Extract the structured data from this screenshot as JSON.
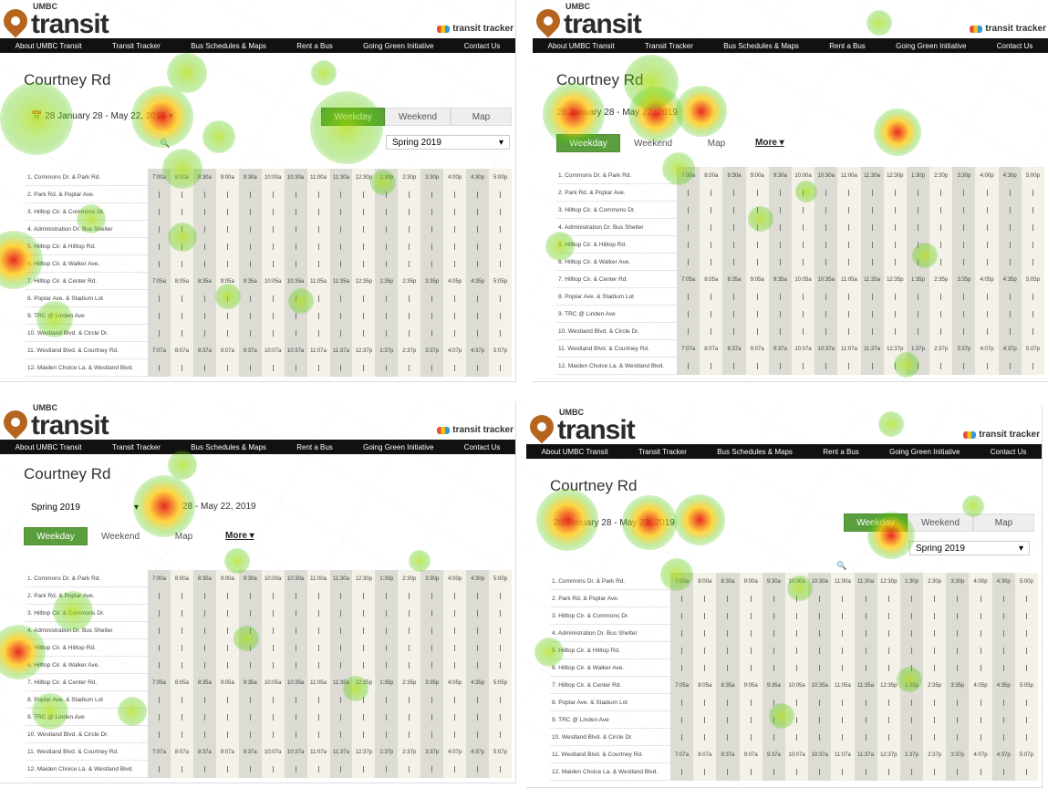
{
  "brand": {
    "umbc": "UMBC",
    "transit": "transit",
    "tracker": "transit tracker"
  },
  "nav": [
    "About UMBC Transit",
    "Transit Tracker",
    "Bus Schedules & Maps",
    "Rent a Bus",
    "Going Green Initiative",
    "Contact Us"
  ],
  "route_title": "Courtney Rd",
  "date_range": "28 January 28 - May 22, 2019",
  "date_range_short": "28 - May 22, 2019",
  "season": "Spring 2019",
  "tabs": [
    "Weekday",
    "Weekend",
    "Map"
  ],
  "more": "More ▾",
  "stops": [
    "1. Commons Dr. & Park Rd.",
    "2. Park Rd. & Poplar Ave.",
    "3. Hilltop Cir. & Commons Dr.",
    "4. Administration Dr. Bus Shelter",
    "5. Hilltop Cir. & Hilltop Rd.",
    "6. Hilltop Cir. & Walker Ave.",
    "7. Hilltop Cir. & Center Rd.",
    "8. Poplar Ave. & Stadium Lot",
    "9. TRC @ Linden Ave",
    "10. Westland Blvd. & Circle Dr.",
    "11. Westland Blvd. & Courtney Rd.",
    "12. Maiden Choice La. & Westland Blvd."
  ],
  "times": [
    "7:00a",
    "8:00a",
    "8:30a",
    "9:00a",
    "9:30a",
    "10:00a",
    "10:30a",
    "11:00a",
    "11:30a",
    "12:30p",
    "1:30p",
    "2:30p",
    "3:30p",
    "4:00p",
    "4:30p",
    "5:00p"
  ],
  "times_row7": [
    "7:05a",
    "8:05a",
    "8:35a",
    "9:05a",
    "9:35a",
    "10:05a",
    "10:35a",
    "11:05a",
    "11:35a",
    "12:35p",
    "1:35p",
    "2:35p",
    "3:35p",
    "4:05p",
    "4:35p",
    "5:05p"
  ],
  "times_row11": [
    "7:07a",
    "8:07a",
    "8:37a",
    "9:07a",
    "9:37a",
    "10:07a",
    "10:37a",
    "11:07a",
    "11:37a",
    "12:37p",
    "1:37p",
    "2:37p",
    "3:37p",
    "4:07p",
    "4:37p",
    "5:07p"
  ],
  "colors": {
    "accent_green": "#5a9e3e",
    "nav_bg": "#111111",
    "logo_pin": "#b5651d"
  }
}
